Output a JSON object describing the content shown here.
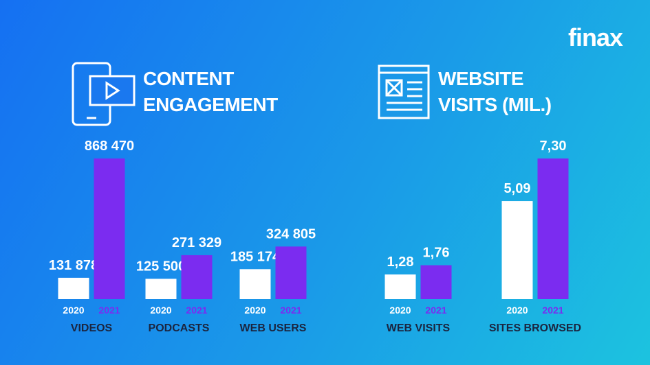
{
  "brand": "finax",
  "chart_data": [
    {
      "type": "bar",
      "title": "CONTENT ENGAGEMENT",
      "categories": [
        "VIDEOS",
        "PODCASTS",
        "WEB USERS"
      ],
      "series": [
        {
          "name": "2020",
          "color": "#ffffff",
          "values": [
            131878,
            125500,
            185174
          ],
          "value_labels": [
            "131 878",
            "125 500",
            "185 174"
          ]
        },
        {
          "name": "2021",
          "color": "#7b2cf0",
          "values": [
            868470,
            271329,
            324805
          ],
          "value_labels": [
            "868 470",
            "271 329",
            "324 805"
          ]
        }
      ]
    },
    {
      "type": "bar",
      "title": "WEBSITE VISITS (MIL.)",
      "categories": [
        "WEB VISITS",
        "SITES BROWSED"
      ],
      "series": [
        {
          "name": "2020",
          "color": "#ffffff",
          "values": [
            1.28,
            5.09
          ],
          "value_labels": [
            "1,28",
            "5,09"
          ]
        },
        {
          "name": "2021",
          "color": "#7b2cf0",
          "values": [
            1.76,
            7.3
          ],
          "value_labels": [
            "1,76",
            "7,30"
          ]
        }
      ]
    }
  ]
}
